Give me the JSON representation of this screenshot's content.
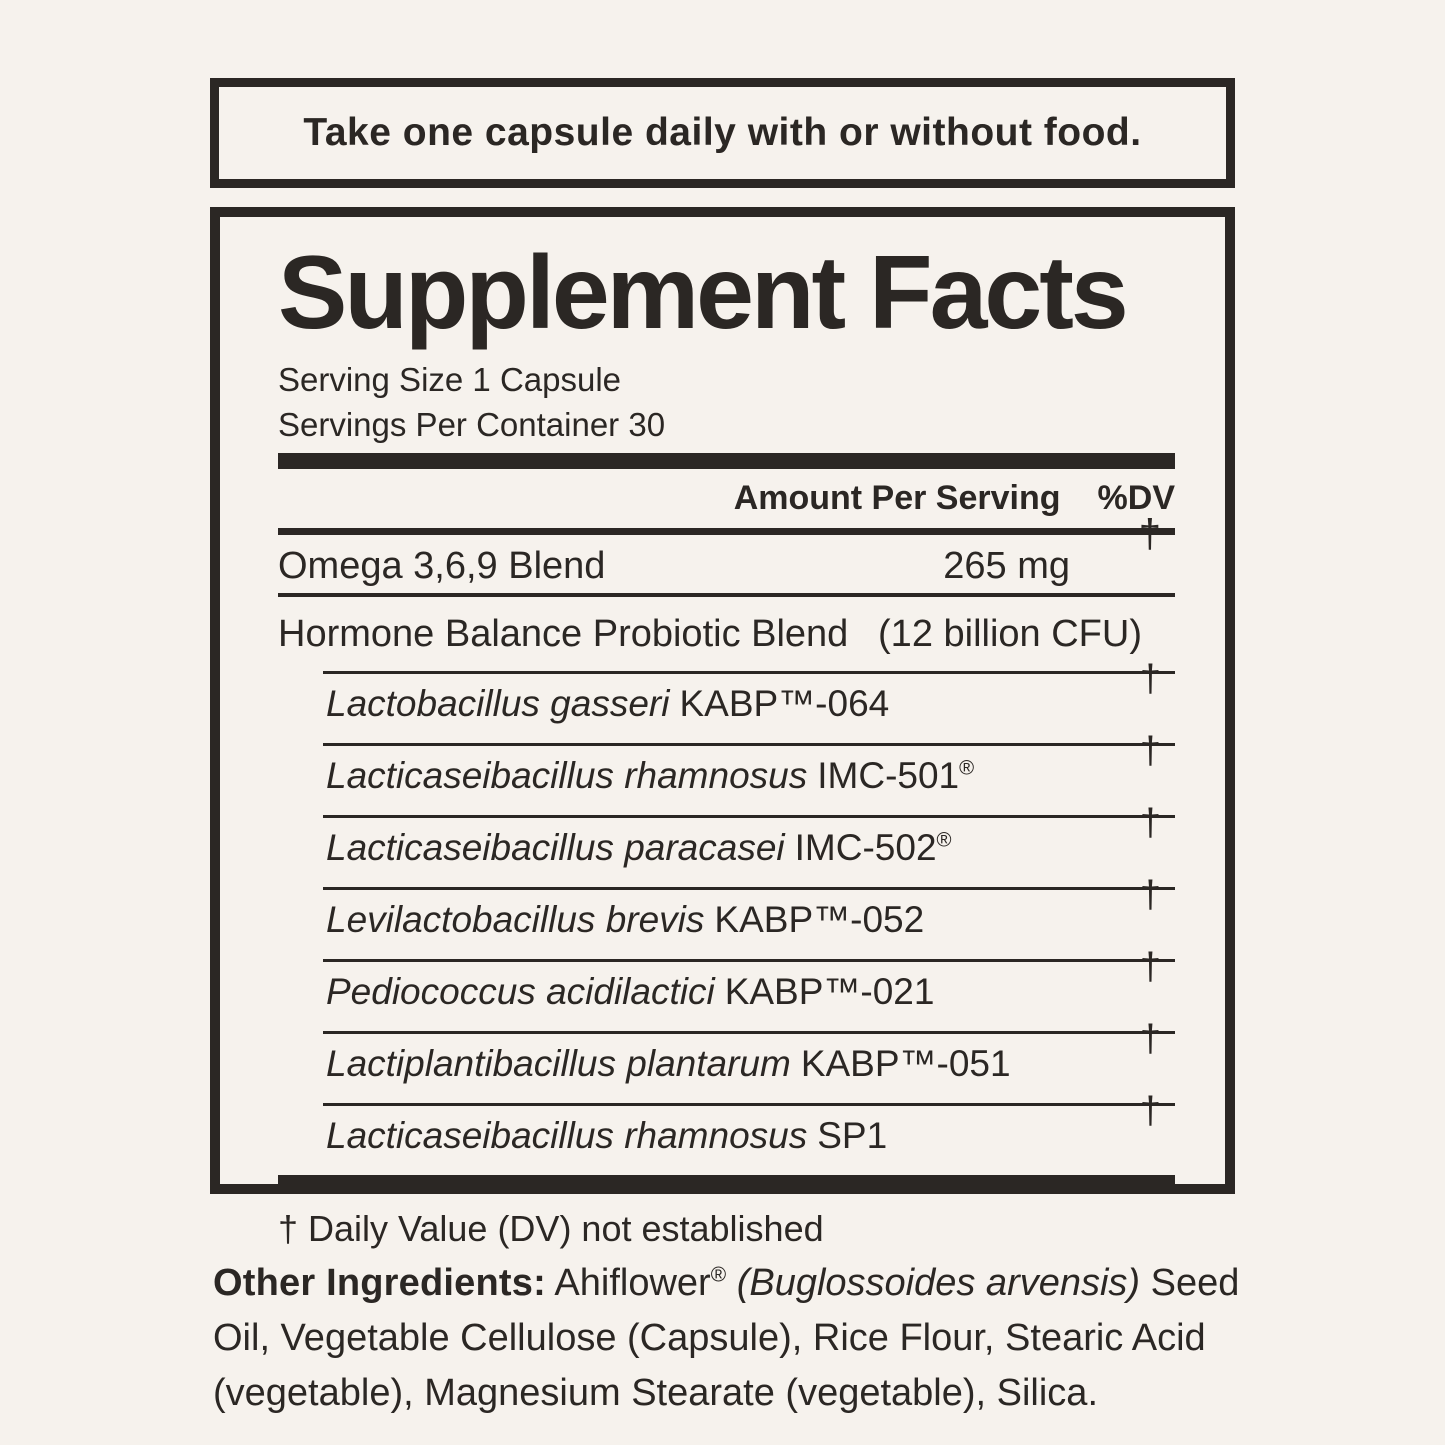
{
  "colors": {
    "background": "#f6f2ed",
    "ink": "#2b2724"
  },
  "directions_box": {
    "text": "Take one capsule daily with or without food."
  },
  "supplement_facts": {
    "title": "Supplement Facts",
    "serving_size": "Serving Size 1 Capsule",
    "servings_per_container": "Servings Per Container 30",
    "column_headers": {
      "amount": "Amount Per Serving",
      "dv": "%DV"
    },
    "rows": [
      {
        "name": "Omega 3,6,9 Blend",
        "amount": "265 mg",
        "dv": "†"
      },
      {
        "name": "Hormone Balance Probiotic Blend",
        "amount": "(12 billion CFU)",
        "dv": ""
      }
    ],
    "sub_rows": [
      {
        "species": "Lactobacillus gasseri",
        "strain": "KABP™-064",
        "strain_mark": "",
        "dv": "†"
      },
      {
        "species": "Lacticaseibacillus rhamnosus",
        "strain": "IMC-501",
        "strain_mark": "®",
        "dv": "†"
      },
      {
        "species": "Lacticaseibacillus paracasei",
        "strain": "IMC-502",
        "strain_mark": "®",
        "dv": "†"
      },
      {
        "species": "Levilactobacillus brevis",
        "strain": "KABP™-052",
        "strain_mark": "",
        "dv": "†"
      },
      {
        "species": "Pediococcus acidilactici",
        "strain": "KABP™-021",
        "strain_mark": "",
        "dv": "†"
      },
      {
        "species": "Lactiplantibacillus plantarum",
        "strain": "KABP™-051",
        "strain_mark": "",
        "dv": "†"
      },
      {
        "species": "Lacticaseibacillus rhamnosus",
        "strain": "SP1",
        "strain_mark": "",
        "dv": "†"
      }
    ],
    "footnote": "† Daily Value (DV) not established"
  },
  "other_ingredients": {
    "label": "Other Ingredients:",
    "lead": " Ahiflower",
    "trademark": "®",
    "space": " ",
    "botanical": "(Buglossoides arvensis)",
    "rest": " Seed Oil, Vegetable Cellulose (Capsule), Rice Flour, Stearic Acid (vegetable), Magnesium Stearate (vegetable), Silica."
  }
}
